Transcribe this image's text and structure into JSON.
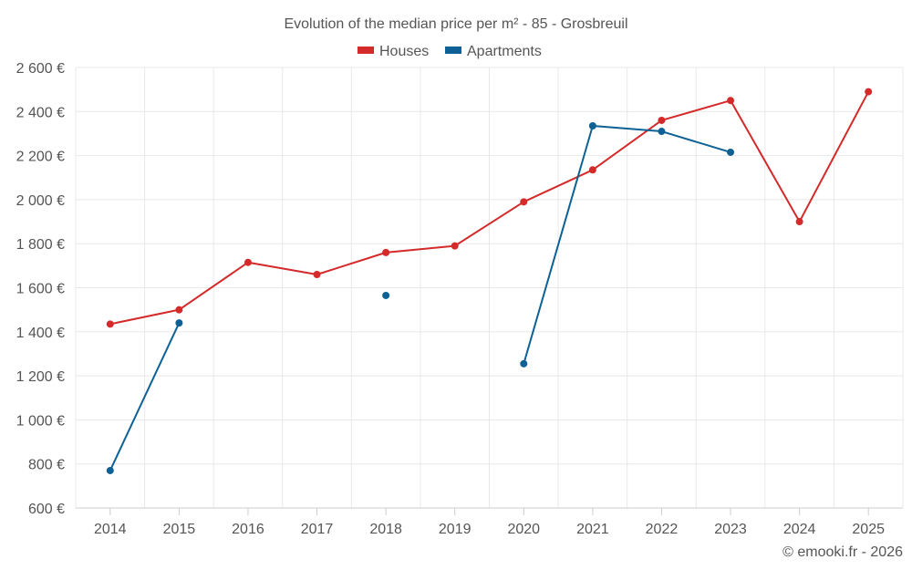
{
  "chart_data": {
    "type": "line",
    "title": "Evolution of the median price per m² - 85 - Grosbreuil",
    "x": [
      "2014",
      "2015",
      "2016",
      "2017",
      "2018",
      "2019",
      "2020",
      "2021",
      "2022",
      "2023",
      "2024",
      "2025"
    ],
    "ylim": [
      600,
      2600
    ],
    "yticks": [
      600,
      800,
      1000,
      1200,
      1400,
      1600,
      1800,
      2000,
      2200,
      2400,
      2600
    ],
    "ytick_labels": [
      "600 €",
      "800 €",
      "1 000 €",
      "1 200 €",
      "1 400 €",
      "1 600 €",
      "1 800 €",
      "2 000 €",
      "2 200 €",
      "2 400 €",
      "2 600 €"
    ],
    "grid": true,
    "legend_position": "top-center",
    "series": [
      {
        "name": "Houses",
        "color": "#d42a2a",
        "values": [
          1435,
          1500,
          1715,
          1660,
          1760,
          1790,
          1990,
          2135,
          2360,
          2450,
          1900,
          2490
        ]
      },
      {
        "name": "Apartments",
        "color": "#0e6194",
        "values": [
          770,
          1440,
          null,
          null,
          1565,
          null,
          1255,
          2335,
          2310,
          2215,
          null,
          null
        ]
      }
    ]
  },
  "credit": "© emooki.fr - 2026"
}
